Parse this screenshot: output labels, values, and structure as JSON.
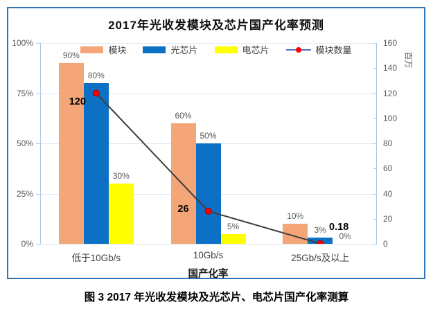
{
  "caption": "图 3 2017 年光收发模块及光芯片、电芯片国产化率测算",
  "chart_data": {
    "type": "bar",
    "title": "2017年光收发模块及芯片国产化率预测",
    "categories": [
      "低于10Gb/s",
      "10Gb/s",
      "25Gb/s及以上"
    ],
    "bar_series": [
      {
        "name": "模块",
        "color": "#F4A678",
        "values": [
          90,
          60,
          10
        ],
        "labels": [
          "90%",
          "60%",
          "10%"
        ]
      },
      {
        "name": "光芯片",
        "color": "#0C70C5",
        "values": [
          80,
          50,
          3
        ],
        "labels": [
          "80%",
          "50%",
          "3%"
        ]
      },
      {
        "name": "电芯片",
        "color": "#FFFF00",
        "values": [
          30,
          5,
          0
        ],
        "labels": [
          "30%",
          "5%",
          "0%"
        ]
      }
    ],
    "line_series": {
      "name": "模块数量",
      "values": [
        120,
        26,
        0.18
      ],
      "labels": [
        "120",
        "26",
        "0.18"
      ],
      "line_color": "#3F3F3F",
      "marker_color": "#FF0000",
      "legend_line_color": "#4472C4"
    },
    "left_axis": {
      "min": 0,
      "max": 100,
      "ticks": [
        "0%",
        "25%",
        "50%",
        "75%",
        "100%"
      ],
      "tick_values": [
        0,
        25,
        50,
        75,
        100
      ]
    },
    "right_axis": {
      "min": 0,
      "max": 160,
      "ticks": [
        "0",
        "20",
        "40",
        "60",
        "80",
        "100",
        "120",
        "140",
        "160"
      ],
      "tick_values": [
        0,
        20,
        40,
        60,
        80,
        100,
        120,
        140,
        160
      ],
      "unit_label": "百万"
    },
    "xlabel": "国产化率",
    "legend_position": "top",
    "grid": "horizontal"
  }
}
